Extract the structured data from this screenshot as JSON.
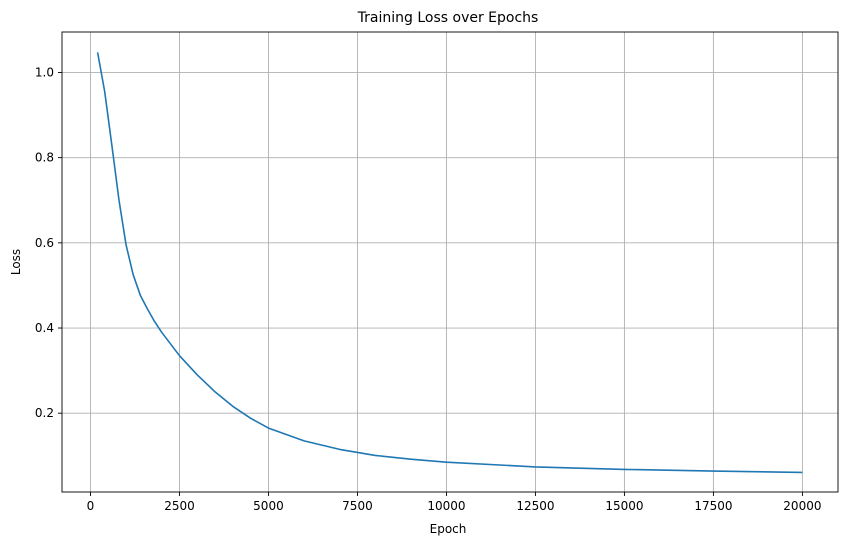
{
  "chart_data": {
    "type": "line",
    "title": "Training Loss over Epochs",
    "xlabel": "Epoch",
    "ylabel": "Loss",
    "xlim": [
      -800,
      21000
    ],
    "ylim": [
      0.015,
      1.095
    ],
    "xticks": [
      0,
      2500,
      5000,
      7500,
      10000,
      12500,
      15000,
      17500,
      20000
    ],
    "yticks": [
      0.2,
      0.4,
      0.6,
      0.8,
      1.0
    ],
    "xtick_labels": [
      "0",
      "2500",
      "5000",
      "7500",
      "10000",
      "12500",
      "15000",
      "17500",
      "20000"
    ],
    "ytick_labels": [
      "0.2",
      "0.4",
      "0.6",
      "0.8",
      "1.0"
    ],
    "grid": true,
    "series": [
      {
        "color": "#1f77b4",
        "x": [
          200,
          400,
          600,
          800,
          1000,
          1200,
          1400,
          1600,
          1800,
          2000,
          2500,
          3000,
          3500,
          4000,
          4500,
          5000,
          6000,
          7000,
          8000,
          9000,
          10000,
          12500,
          15000,
          17500,
          20000
        ],
        "y": [
          1.047,
          0.955,
          0.83,
          0.7,
          0.595,
          0.525,
          0.477,
          0.445,
          0.415,
          0.39,
          0.335,
          0.29,
          0.25,
          0.216,
          0.188,
          0.165,
          0.135,
          0.115,
          0.101,
          0.092,
          0.085,
          0.074,
          0.068,
          0.064,
          0.061
        ]
      }
    ]
  }
}
